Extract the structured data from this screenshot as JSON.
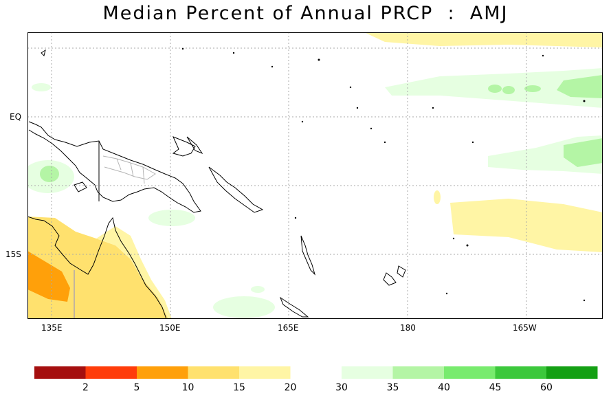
{
  "title": "Median Percent of Annual PRCP  :  AMJ",
  "map": {
    "lon_labels": [
      "135E",
      "150E",
      "165E",
      "180",
      "165W"
    ],
    "lat_labels": [
      "EQ",
      "15S"
    ]
  },
  "legend": {
    "dry_colors": [
      "#a50f0f",
      "#ff3c0a",
      "#ffa00a",
      "#ffe16e",
      "#fff5a5"
    ],
    "dry_labels": [
      "2",
      "5",
      "10",
      "15",
      "20"
    ],
    "wet_colors": [
      "#e6ffe1",
      "#b4f5a5",
      "#78eb6e",
      "#3cc83c",
      "#14a014"
    ],
    "wet_labels": [
      "30",
      "35",
      "40",
      "45",
      "60"
    ]
  },
  "colors": {
    "land_outline": "#000000",
    "grid": "#aaaaaa",
    "border": "#b4b4b4"
  }
}
